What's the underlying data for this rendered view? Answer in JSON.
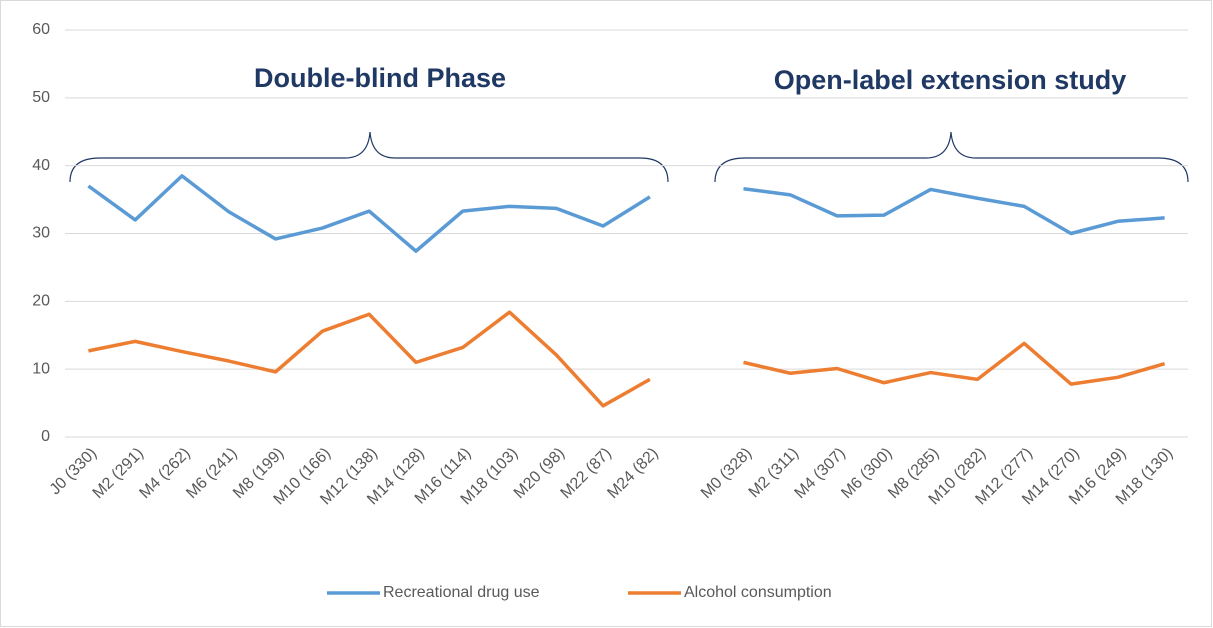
{
  "chart_data": {
    "type": "line",
    "annotations": [
      "Double-blind Phase",
      "Open-label extension study"
    ],
    "categories": [
      "J0 (330)",
      "M2 (291)",
      "M4 (262)",
      "M6 (241)",
      "M8 (199)",
      "M10 (166)",
      "M12 (138)",
      "M14 (128)",
      "M16 (114)",
      "M18 (103)",
      "M20 (98)",
      "M22 (87)",
      "M24 (82)",
      null,
      "M0 (328)",
      "M2 (311)",
      "M4 (307)",
      "M6 (300)",
      "M8 (285)",
      "M10 (282)",
      "M12 (277)",
      "M14 (270)",
      "M16 (249)",
      "M18 (130)"
    ],
    "series": [
      {
        "name": "Recreational drug use",
        "color": "#5b9bd5",
        "values": [
          37,
          32,
          38.5,
          33.2,
          29.2,
          30.8,
          33.3,
          27.4,
          33.3,
          34,
          33.7,
          31.1,
          35.4,
          null,
          36.6,
          35.7,
          32.6,
          32.7,
          36.5,
          35.2,
          34,
          30,
          31.8,
          32.3
        ]
      },
      {
        "name": "Alcohol consumption",
        "color": "#ed7d31",
        "values": [
          12.7,
          14.1,
          12.6,
          11.2,
          9.6,
          15.6,
          18.1,
          11,
          13.2,
          18.4,
          12.1,
          4.6,
          8.5,
          null,
          11,
          9.4,
          10.1,
          8,
          9.5,
          8.5,
          13.8,
          7.8,
          8.8,
          10.8
        ]
      }
    ],
    "ylim": [
      0,
      60
    ],
    "yticks": [
      0,
      10,
      20,
      30,
      40,
      50,
      60
    ],
    "grid": true,
    "legend": "bottom"
  }
}
